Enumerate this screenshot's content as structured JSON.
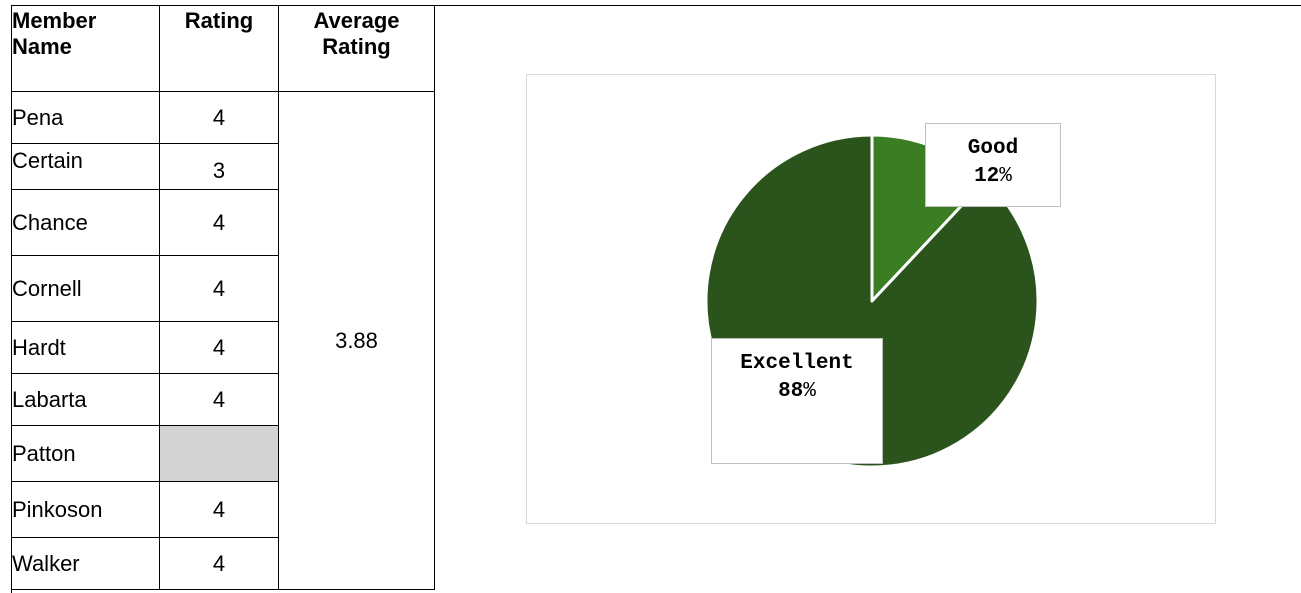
{
  "table": {
    "headers": {
      "name_line1": "Member",
      "name_line2": "Name",
      "rating": "Rating",
      "avg_line1": "Average",
      "avg_line2": "Rating"
    },
    "rows": [
      {
        "name": "Pena",
        "rating": "4"
      },
      {
        "name": "Certain",
        "rating": "3"
      },
      {
        "name": "Chance",
        "rating": "4"
      },
      {
        "name": "Cornell",
        "rating": "4"
      },
      {
        "name": "Hardt",
        "rating": "4"
      },
      {
        "name": "Labarta",
        "rating": "4"
      },
      {
        "name": "Patton",
        "rating": ""
      },
      {
        "name": "Pinkoson",
        "rating": "4"
      },
      {
        "name": "Walker",
        "rating": "4"
      }
    ],
    "average": "3.88"
  },
  "chart_data": {
    "type": "pie",
    "slices": [
      {
        "label": "Good",
        "value": 12,
        "pct_text": "12",
        "color": "#3a7d22"
      },
      {
        "label": "Excellent",
        "value": 88,
        "pct_text": "88",
        "color": "#2a541b"
      }
    ],
    "label_separator": "%",
    "slice_border_color": "#ffffff",
    "frame_border_color": "#d9d9d9"
  }
}
